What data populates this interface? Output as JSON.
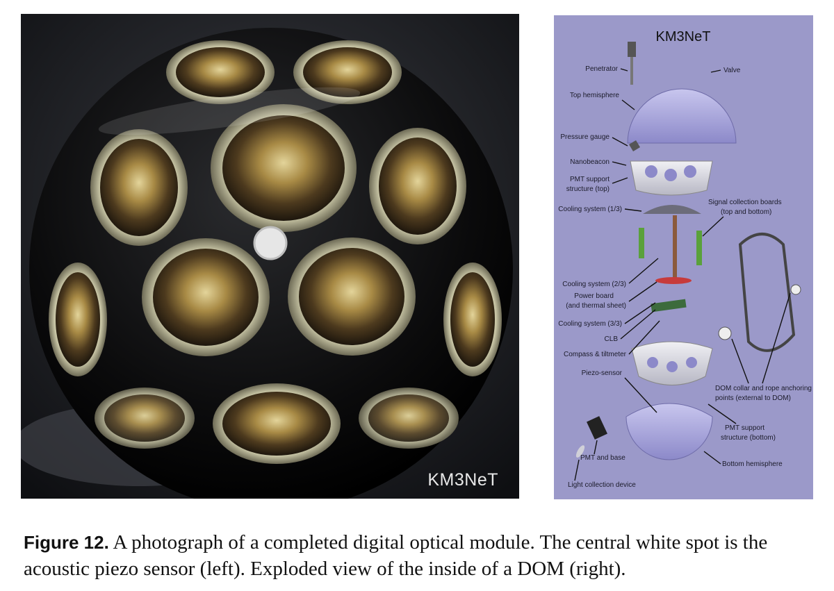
{
  "photo": {
    "watermark": "KM3NeT"
  },
  "diagram": {
    "title": "KM3NeT",
    "labels": {
      "penetrator": "Penetrator",
      "valve": "Valve",
      "top_hemisphere": "Top hemisphere",
      "pressure_gauge": "Pressure gauge",
      "nanobeacon": "Nanobeacon",
      "pmt_support_top_1": "PMT support",
      "pmt_support_top_2": "structure (top)",
      "cooling_1": "Cooling system (1/3)",
      "signal_boards_1": "Signal collection boards",
      "signal_boards_2": "(top and bottom)",
      "cooling_2": "Cooling system (2/3)",
      "power_board_1": "Power board",
      "power_board_2": "(and thermal sheet)",
      "cooling_3": "Cooling system (3/3)",
      "clb": "CLB",
      "compass": "Compass & tiltmeter",
      "piezo": "Piezo-sensor",
      "collar_1": "DOM collar and rope anchoring",
      "collar_2": "points (external to DOM)",
      "pmt_support_bottom_1": "PMT support",
      "pmt_support_bottom_2": "structure (bottom)",
      "pmt_base": "PMT and base",
      "bottom_hemisphere": "Bottom hemisphere",
      "light_device": "Light collection device"
    }
  },
  "caption": {
    "label": "Figure 12.",
    "text": " A photograph of a completed digital optical module. The central white spot is the acoustic piezo sensor (left). Exploded view of the inside of a DOM (right)."
  }
}
